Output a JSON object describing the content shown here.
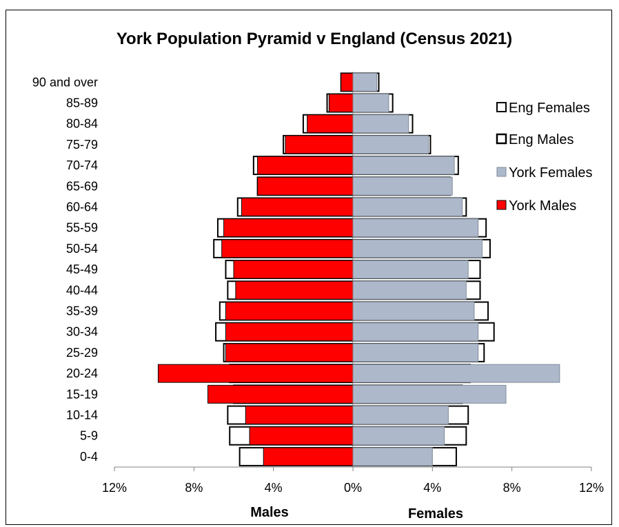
{
  "chart_data": {
    "type": "bar",
    "orientation": "horizontal-pyramid",
    "title": "York Population Pyramid v England (Census 2021)",
    "categories": [
      "0-4",
      "5-9",
      "10-14",
      "15-19",
      "20-24",
      "25-29",
      "30-34",
      "35-39",
      "40-44",
      "45-49",
      "50-54",
      "55-59",
      "60-64",
      "65-69",
      "70-74",
      "75-79",
      "80-84",
      "85-89",
      "90 and over"
    ],
    "series": [
      {
        "name": "Eng Females",
        "side": "right",
        "values": [
          5.2,
          5.7,
          5.8,
          5.5,
          5.9,
          6.6,
          7.1,
          6.8,
          6.4,
          6.4,
          6.9,
          6.7,
          5.7,
          4.9,
          5.3,
          3.9,
          3.0,
          2.0,
          1.3
        ]
      },
      {
        "name": "Eng Males",
        "side": "left",
        "values": [
          5.7,
          6.2,
          6.3,
          6.0,
          6.2,
          6.5,
          6.9,
          6.7,
          6.3,
          6.4,
          7.0,
          6.8,
          5.8,
          4.8,
          5.0,
          3.5,
          2.5,
          1.3,
          0.6
        ]
      },
      {
        "name": "York Females",
        "side": "right",
        "values": [
          4.0,
          4.6,
          4.8,
          7.7,
          10.4,
          6.3,
          6.3,
          6.1,
          5.7,
          5.8,
          6.5,
          6.3,
          5.5,
          5.0,
          5.1,
          3.8,
          2.8,
          1.8,
          1.2
        ]
      },
      {
        "name": "York Males",
        "side": "left",
        "values": [
          4.5,
          5.2,
          5.4,
          7.3,
          9.8,
          6.4,
          6.4,
          6.4,
          5.9,
          6.0,
          6.6,
          6.5,
          5.6,
          4.8,
          4.8,
          3.4,
          2.3,
          1.2,
          0.6
        ]
      }
    ],
    "x_ticks": [
      "12%",
      "8%",
      "4%",
      "0%",
      "4%",
      "8%",
      "12%"
    ],
    "xlim": [
      -12,
      12
    ],
    "xlabel_left": "Males",
    "xlabel_right": "Females",
    "legend_position": "right",
    "colors": {
      "york_males": "#ff0000",
      "york_females": "#adb9ca",
      "england_outline": "#000000",
      "england_fill": "#ffffff"
    }
  }
}
